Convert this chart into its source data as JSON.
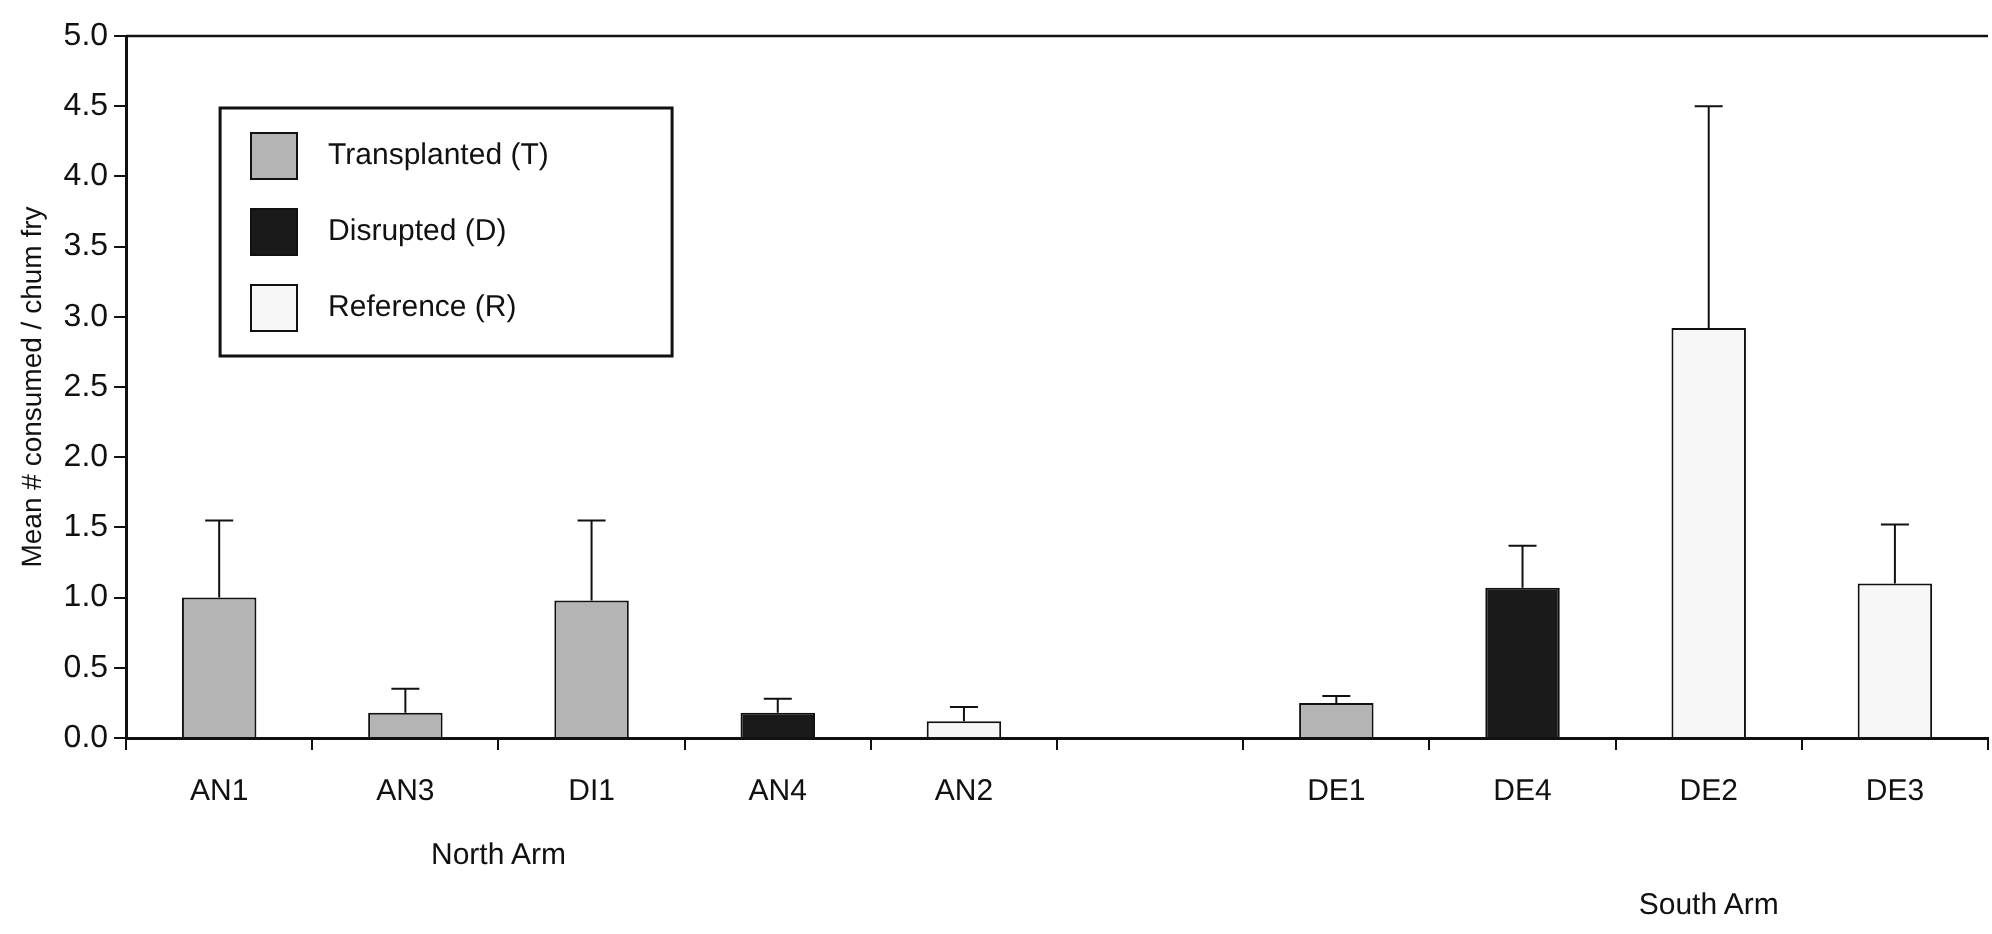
{
  "chart_data": {
    "type": "bar",
    "ylabel": "Mean # consumed / chum fry",
    "categories": [
      "AN1",
      "AN3",
      "DI1",
      "AN4",
      "AN2",
      null,
      "DE1",
      "DE4",
      "DE2",
      "DE3"
    ],
    "series": [
      {
        "name": "Transplanted (T)",
        "color": "#b4b4b4",
        "values": [
          1.0,
          0.18,
          0.98,
          null,
          null,
          null,
          0.25,
          null,
          null,
          null
        ],
        "errors": [
          0.55,
          0.17,
          0.57,
          null,
          null,
          null,
          0.05,
          null,
          null,
          null
        ]
      },
      {
        "name": "Disrupted (D)",
        "color": "#1a1a1a",
        "values": [
          null,
          null,
          null,
          0.18,
          null,
          null,
          null,
          1.07,
          null,
          null
        ],
        "errors": [
          null,
          null,
          null,
          0.1,
          null,
          null,
          null,
          0.3,
          null,
          null
        ]
      },
      {
        "name": "Reference (R)",
        "color": "#f7f7f7",
        "values": [
          null,
          null,
          null,
          null,
          0.12,
          null,
          null,
          null,
          2.92,
          1.1
        ],
        "errors": [
          null,
          null,
          null,
          null,
          0.1,
          null,
          null,
          null,
          1.58,
          0.42
        ]
      }
    ],
    "ylim": [
      0,
      5
    ],
    "yticks": [
      {
        "value": 0,
        "label": "0.0"
      },
      {
        "value": 0.5,
        "label": "0.5"
      },
      {
        "value": 1,
        "label": "1.0"
      },
      {
        "value": 1.5,
        "label": "1.5"
      },
      {
        "value": 2,
        "label": "2.0"
      },
      {
        "value": 2.5,
        "label": "2.5"
      },
      {
        "value": 3,
        "label": "3.0"
      },
      {
        "value": 3.5,
        "label": "3.5"
      },
      {
        "value": 4,
        "label": "4.0"
      },
      {
        "value": 4.5,
        "label": "4.5"
      },
      {
        "value": 5,
        "label": "5.0"
      }
    ],
    "grid": false,
    "legend": "top left",
    "annotations": [
      "North Arm",
      "South Arm"
    ]
  }
}
